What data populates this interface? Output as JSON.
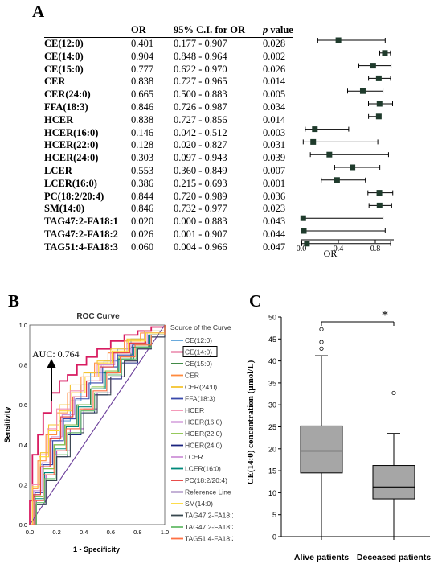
{
  "panelA": {
    "label": "A",
    "headers": {
      "or": "OR",
      "ci": "95% C.I. for OR",
      "p": "p",
      "value": " value"
    },
    "rows": [
      {
        "name": "CE(12:0)",
        "or": "0.401",
        "ci": "0.177 - 0.907",
        "p": "0.028"
      },
      {
        "name": "CE(14:0)",
        "or": "0.904",
        "ci": "0.848 - 0.964",
        "p": "0.002"
      },
      {
        "name": "CE(15:0)",
        "or": "0.777",
        "ci": "0.622 - 0.970",
        "p": "0.026"
      },
      {
        "name": "CER",
        "or": "0.838",
        "ci": "0.727 - 0.965",
        "p": "0.014"
      },
      {
        "name": "CER(24:0)",
        "or": "0.665",
        "ci": "0.500 - 0.883",
        "p": "0.005"
      },
      {
        "name": "FFA(18:3)",
        "or": "0.846",
        "ci": "0.726 - 0.987",
        "p": "0.034"
      },
      {
        "name": "HCER",
        "or": "0.838",
        "ci": "0.727 - 0.856",
        "p": "0.014"
      },
      {
        "name": "HCER(16:0)",
        "or": "0.146",
        "ci": "0.042 - 0.512",
        "p": "0.003"
      },
      {
        "name": "HCER(22:0)",
        "or": "0.128",
        "ci": "0.020 - 0.827",
        "p": "0.031"
      },
      {
        "name": "HCER(24:0)",
        "or": "0.303",
        "ci": "0.097 - 0.943",
        "p": "0.039"
      },
      {
        "name": "LCER",
        "or": "0.553",
        "ci": "0.360 - 0.849",
        "p": "0.007"
      },
      {
        "name": "LCER(16:0)",
        "or": "0.386",
        "ci": "0.215 - 0.693",
        "p": "0.001"
      },
      {
        "name": "PC(18:2/20:4)",
        "or": "0.844",
        "ci": "0.720 - 0.989",
        "p": "0.036"
      },
      {
        "name": "SM(14:0)",
        "or": "0.846",
        "ci": "0.732 - 0.977",
        "p": "0.023"
      },
      {
        "name": "TAG47:2-FA18:1",
        "or": "0.020",
        "ci": "0.000 - 0.883",
        "p": "0.043"
      },
      {
        "name": "TAG47:2-FA18:2",
        "or": "0.026",
        "ci": "0.001 - 0.907",
        "p": "0.044"
      },
      {
        "name": "TAG51:4-FA18:3",
        "or": "0.060",
        "ci": "0.004 - 0.966",
        "p": "0.047"
      }
    ]
  },
  "panelB": {
    "label": "B"
  },
  "panelC": {
    "label": "C"
  },
  "chart_data": [
    {
      "type": "forest",
      "xlabel": "OR",
      "xlim": [
        0.0,
        1.0
      ],
      "xticks": [
        "0.0",
        "0.4",
        "0.8"
      ],
      "series": [
        {
          "name": "CE(12:0)",
          "or": 0.401,
          "lo": 0.177,
          "hi": 0.907
        },
        {
          "name": "CE(14:0)",
          "or": 0.904,
          "lo": 0.848,
          "hi": 0.964
        },
        {
          "name": "CE(15:0)",
          "or": 0.777,
          "lo": 0.622,
          "hi": 0.97
        },
        {
          "name": "CER",
          "or": 0.838,
          "lo": 0.727,
          "hi": 0.965
        },
        {
          "name": "CER(24:0)",
          "or": 0.665,
          "lo": 0.5,
          "hi": 0.883
        },
        {
          "name": "FFA(18:3)",
          "or": 0.846,
          "lo": 0.726,
          "hi": 0.987
        },
        {
          "name": "HCER",
          "or": 0.838,
          "lo": 0.727,
          "hi": 0.856
        },
        {
          "name": "HCER(16:0)",
          "or": 0.146,
          "lo": 0.042,
          "hi": 0.512
        },
        {
          "name": "HCER(22:0)",
          "or": 0.128,
          "lo": 0.02,
          "hi": 0.827
        },
        {
          "name": "HCER(24:0)",
          "or": 0.303,
          "lo": 0.097,
          "hi": 0.943
        },
        {
          "name": "LCER",
          "or": 0.553,
          "lo": 0.36,
          "hi": 0.849
        },
        {
          "name": "LCER(16:0)",
          "or": 0.386,
          "lo": 0.215,
          "hi": 0.693
        },
        {
          "name": "PC(18:2/20:4)",
          "or": 0.844,
          "lo": 0.72,
          "hi": 0.989
        },
        {
          "name": "SM(14:0)",
          "or": 0.846,
          "lo": 0.732,
          "hi": 0.977
        },
        {
          "name": "TAG47:2-FA18:1",
          "or": 0.02,
          "lo": 0.0,
          "hi": 0.883
        },
        {
          "name": "TAG47:2-FA18:2",
          "or": 0.026,
          "lo": 0.001,
          "hi": 0.907
        },
        {
          "name": "TAG51:4-FA18:3",
          "or": 0.06,
          "lo": 0.004,
          "hi": 0.966
        }
      ],
      "marker_color": "#1f3b2c"
    },
    {
      "type": "line",
      "title": "ROC Curve",
      "xlabel": "1 - Specificity",
      "ylabel": "Sensitivity",
      "xlim": [
        0.0,
        1.0
      ],
      "ylim": [
        0.0,
        1.0
      ],
      "xticks": [
        "0.0",
        "0.2",
        "0.4",
        "0.6",
        "0.8",
        "1.0"
      ],
      "yticks": [
        "0.0",
        "0.2",
        "0.4",
        "0.6",
        "0.8",
        "1.0"
      ],
      "legend_title": "Source of the Curve",
      "legend_position": "right",
      "annotation": "AUC: 0.764",
      "highlighted_series": "CE(14:0)",
      "series": [
        {
          "name": "CE(12:0)",
          "color": "#5aa0d8",
          "x": [
            0,
            0.02,
            0.08,
            0.15,
            0.22,
            0.3,
            0.38,
            0.45,
            0.55,
            0.65,
            0.75,
            0.85,
            1
          ],
          "y": [
            0,
            0.15,
            0.3,
            0.42,
            0.52,
            0.62,
            0.7,
            0.76,
            0.82,
            0.88,
            0.93,
            0.97,
            1
          ]
        },
        {
          "name": "CE(14:0)",
          "color": "#d81b60",
          "x": [
            0,
            0,
            0.02,
            0.06,
            0.1,
            0.16,
            0.16,
            0.22,
            0.28,
            0.35,
            0.42,
            0.5,
            0.6,
            0.7,
            0.8,
            0.9,
            1
          ],
          "y": [
            0,
            0.12,
            0.35,
            0.45,
            0.56,
            0.56,
            0.66,
            0.72,
            0.75,
            0.8,
            0.84,
            0.88,
            0.92,
            0.95,
            0.97,
            0.99,
            1
          ]
        },
        {
          "name": "CE(15:0)",
          "color": "#2e7d32",
          "x": [
            0,
            0.03,
            0.1,
            0.18,
            0.26,
            0.35,
            0.45,
            0.55,
            0.65,
            0.75,
            0.88,
            1
          ],
          "y": [
            0,
            0.14,
            0.28,
            0.4,
            0.5,
            0.6,
            0.68,
            0.76,
            0.83,
            0.89,
            0.95,
            1
          ]
        },
        {
          "name": "CER",
          "color": "#ff8a3d",
          "x": [
            0,
            0.02,
            0.06,
            0.12,
            0.2,
            0.28,
            0.38,
            0.48,
            0.58,
            0.7,
            0.82,
            1
          ],
          "y": [
            0,
            0.18,
            0.32,
            0.45,
            0.56,
            0.66,
            0.74,
            0.81,
            0.86,
            0.92,
            0.96,
            1
          ]
        },
        {
          "name": "CER(24:0)",
          "color": "#f4c430",
          "x": [
            0,
            0.02,
            0.08,
            0.14,
            0.22,
            0.3,
            0.4,
            0.5,
            0.6,
            0.72,
            0.85,
            1
          ],
          "y": [
            0,
            0.2,
            0.36,
            0.5,
            0.6,
            0.7,
            0.76,
            0.82,
            0.88,
            0.93,
            0.97,
            1
          ]
        },
        {
          "name": "FFA(18:3)",
          "color": "#3949ab",
          "x": [
            0,
            0.04,
            0.1,
            0.17,
            0.25,
            0.34,
            0.44,
            0.54,
            0.65,
            0.76,
            0.88,
            1
          ],
          "y": [
            0,
            0.16,
            0.3,
            0.42,
            0.53,
            0.63,
            0.71,
            0.79,
            0.85,
            0.9,
            0.95,
            1
          ]
        },
        {
          "name": "HCER",
          "color": "#f48fb1",
          "x": [
            0,
            0.02,
            0.07,
            0.13,
            0.2,
            0.3,
            0.4,
            0.5,
            0.6,
            0.72,
            0.85,
            1
          ],
          "y": [
            0,
            0.2,
            0.35,
            0.48,
            0.58,
            0.67,
            0.74,
            0.8,
            0.86,
            0.91,
            0.96,
            1
          ]
        },
        {
          "name": "HCER(16:0)",
          "color": "#ab47bc",
          "x": [
            0,
            0.05,
            0.12,
            0.2,
            0.3,
            0.4,
            0.5,
            0.6,
            0.7,
            0.8,
            0.9,
            1
          ],
          "y": [
            0,
            0.12,
            0.25,
            0.37,
            0.48,
            0.58,
            0.66,
            0.74,
            0.82,
            0.88,
            0.94,
            1
          ]
        },
        {
          "name": "HCER(22:0)",
          "color": "#8bc34a",
          "x": [
            0,
            0.04,
            0.1,
            0.18,
            0.26,
            0.36,
            0.46,
            0.56,
            0.66,
            0.78,
            0.9,
            1
          ],
          "y": [
            0,
            0.14,
            0.28,
            0.4,
            0.5,
            0.6,
            0.69,
            0.77,
            0.84,
            0.9,
            0.95,
            1
          ]
        },
        {
          "name": "HCER(24:0)",
          "color": "#1a237e",
          "x": [
            0,
            0.05,
            0.12,
            0.2,
            0.28,
            0.38,
            0.48,
            0.58,
            0.68,
            0.8,
            0.9,
            1
          ],
          "y": [
            0,
            0.1,
            0.22,
            0.34,
            0.45,
            0.56,
            0.65,
            0.73,
            0.81,
            0.88,
            0.94,
            1
          ]
        },
        {
          "name": "LCER",
          "color": "#ce93d8",
          "x": [
            0,
            0.03,
            0.09,
            0.16,
            0.24,
            0.33,
            0.43,
            0.53,
            0.63,
            0.75,
            0.87,
            1
          ],
          "y": [
            0,
            0.17,
            0.31,
            0.44,
            0.55,
            0.64,
            0.72,
            0.8,
            0.86,
            0.91,
            0.96,
            1
          ]
        },
        {
          "name": "LCER(16:0)",
          "color": "#00897b",
          "x": [
            0,
            0.04,
            0.11,
            0.19,
            0.27,
            0.36,
            0.46,
            0.56,
            0.66,
            0.77,
            0.89,
            1
          ],
          "y": [
            0,
            0.13,
            0.26,
            0.38,
            0.49,
            0.59,
            0.68,
            0.76,
            0.83,
            0.89,
            0.95,
            1
          ]
        },
        {
          "name": "PC(18:2/20:4)",
          "color": "#e53935",
          "x": [
            0,
            0.03,
            0.08,
            0.15,
            0.23,
            0.32,
            0.42,
            0.52,
            0.62,
            0.74,
            0.86,
            1
          ],
          "y": [
            0,
            0.15,
            0.29,
            0.43,
            0.54,
            0.64,
            0.72,
            0.79,
            0.86,
            0.91,
            0.96,
            1
          ]
        },
        {
          "name": "Reference Line",
          "color": "#6a3d9a",
          "x": [
            0,
            1
          ],
          "y": [
            0,
            1
          ]
        },
        {
          "name": "SM(14:0)",
          "color": "#fdd835",
          "x": [
            0,
            0.02,
            0.07,
            0.14,
            0.22,
            0.31,
            0.41,
            0.51,
            0.61,
            0.73,
            0.86,
            1
          ],
          "y": [
            0,
            0.19,
            0.34,
            0.47,
            0.57,
            0.66,
            0.74,
            0.81,
            0.87,
            0.92,
            0.96,
            1
          ]
        },
        {
          "name": "TAG47:2-FA18:1",
          "color": "#37474f",
          "x": [
            0,
            0.05,
            0.12,
            0.2,
            0.3,
            0.4,
            0.5,
            0.6,
            0.7,
            0.8,
            0.9,
            1
          ],
          "y": [
            0,
            0.1,
            0.22,
            0.34,
            0.46,
            0.56,
            0.65,
            0.74,
            0.82,
            0.88,
            0.94,
            1
          ]
        },
        {
          "name": "TAG47:2-FA18:2",
          "color": "#66bb6a",
          "x": [
            0,
            0.05,
            0.11,
            0.19,
            0.28,
            0.38,
            0.48,
            0.58,
            0.68,
            0.79,
            0.9,
            1
          ],
          "y": [
            0,
            0.11,
            0.23,
            0.35,
            0.46,
            0.57,
            0.66,
            0.75,
            0.83,
            0.89,
            0.95,
            1
          ]
        },
        {
          "name": "TAG51:4-FA18:3",
          "color": "#ff7043",
          "x": [
            0,
            0.04,
            0.1,
            0.18,
            0.27,
            0.37,
            0.47,
            0.57,
            0.67,
            0.78,
            0.9,
            1
          ],
          "y": [
            0,
            0.12,
            0.25,
            0.37,
            0.48,
            0.58,
            0.67,
            0.76,
            0.84,
            0.9,
            0.95,
            1
          ]
        }
      ]
    },
    {
      "type": "box",
      "ylabel": "CE(14:0) concentration (μmol/L)",
      "ylim": [
        0,
        50
      ],
      "yticks": [
        "0",
        "5",
        "10",
        "15",
        "20",
        "25",
        "30",
        "35",
        "40",
        "45",
        "50"
      ],
      "categories": [
        "Alive patients",
        "Deceased patients"
      ],
      "boxes": [
        {
          "min": 0,
          "q1": 14.5,
          "median": 19.5,
          "q3": 25.2,
          "max": 41.2,
          "outliers": [
            42.8,
            44.3,
            47.2
          ]
        },
        {
          "min": 0,
          "q1": 8.6,
          "median": 11.3,
          "q3": 16.2,
          "max": 23.5,
          "outliers": [
            32.7
          ]
        }
      ],
      "significance": "*",
      "box_fill": "#a6a6a6"
    }
  ]
}
